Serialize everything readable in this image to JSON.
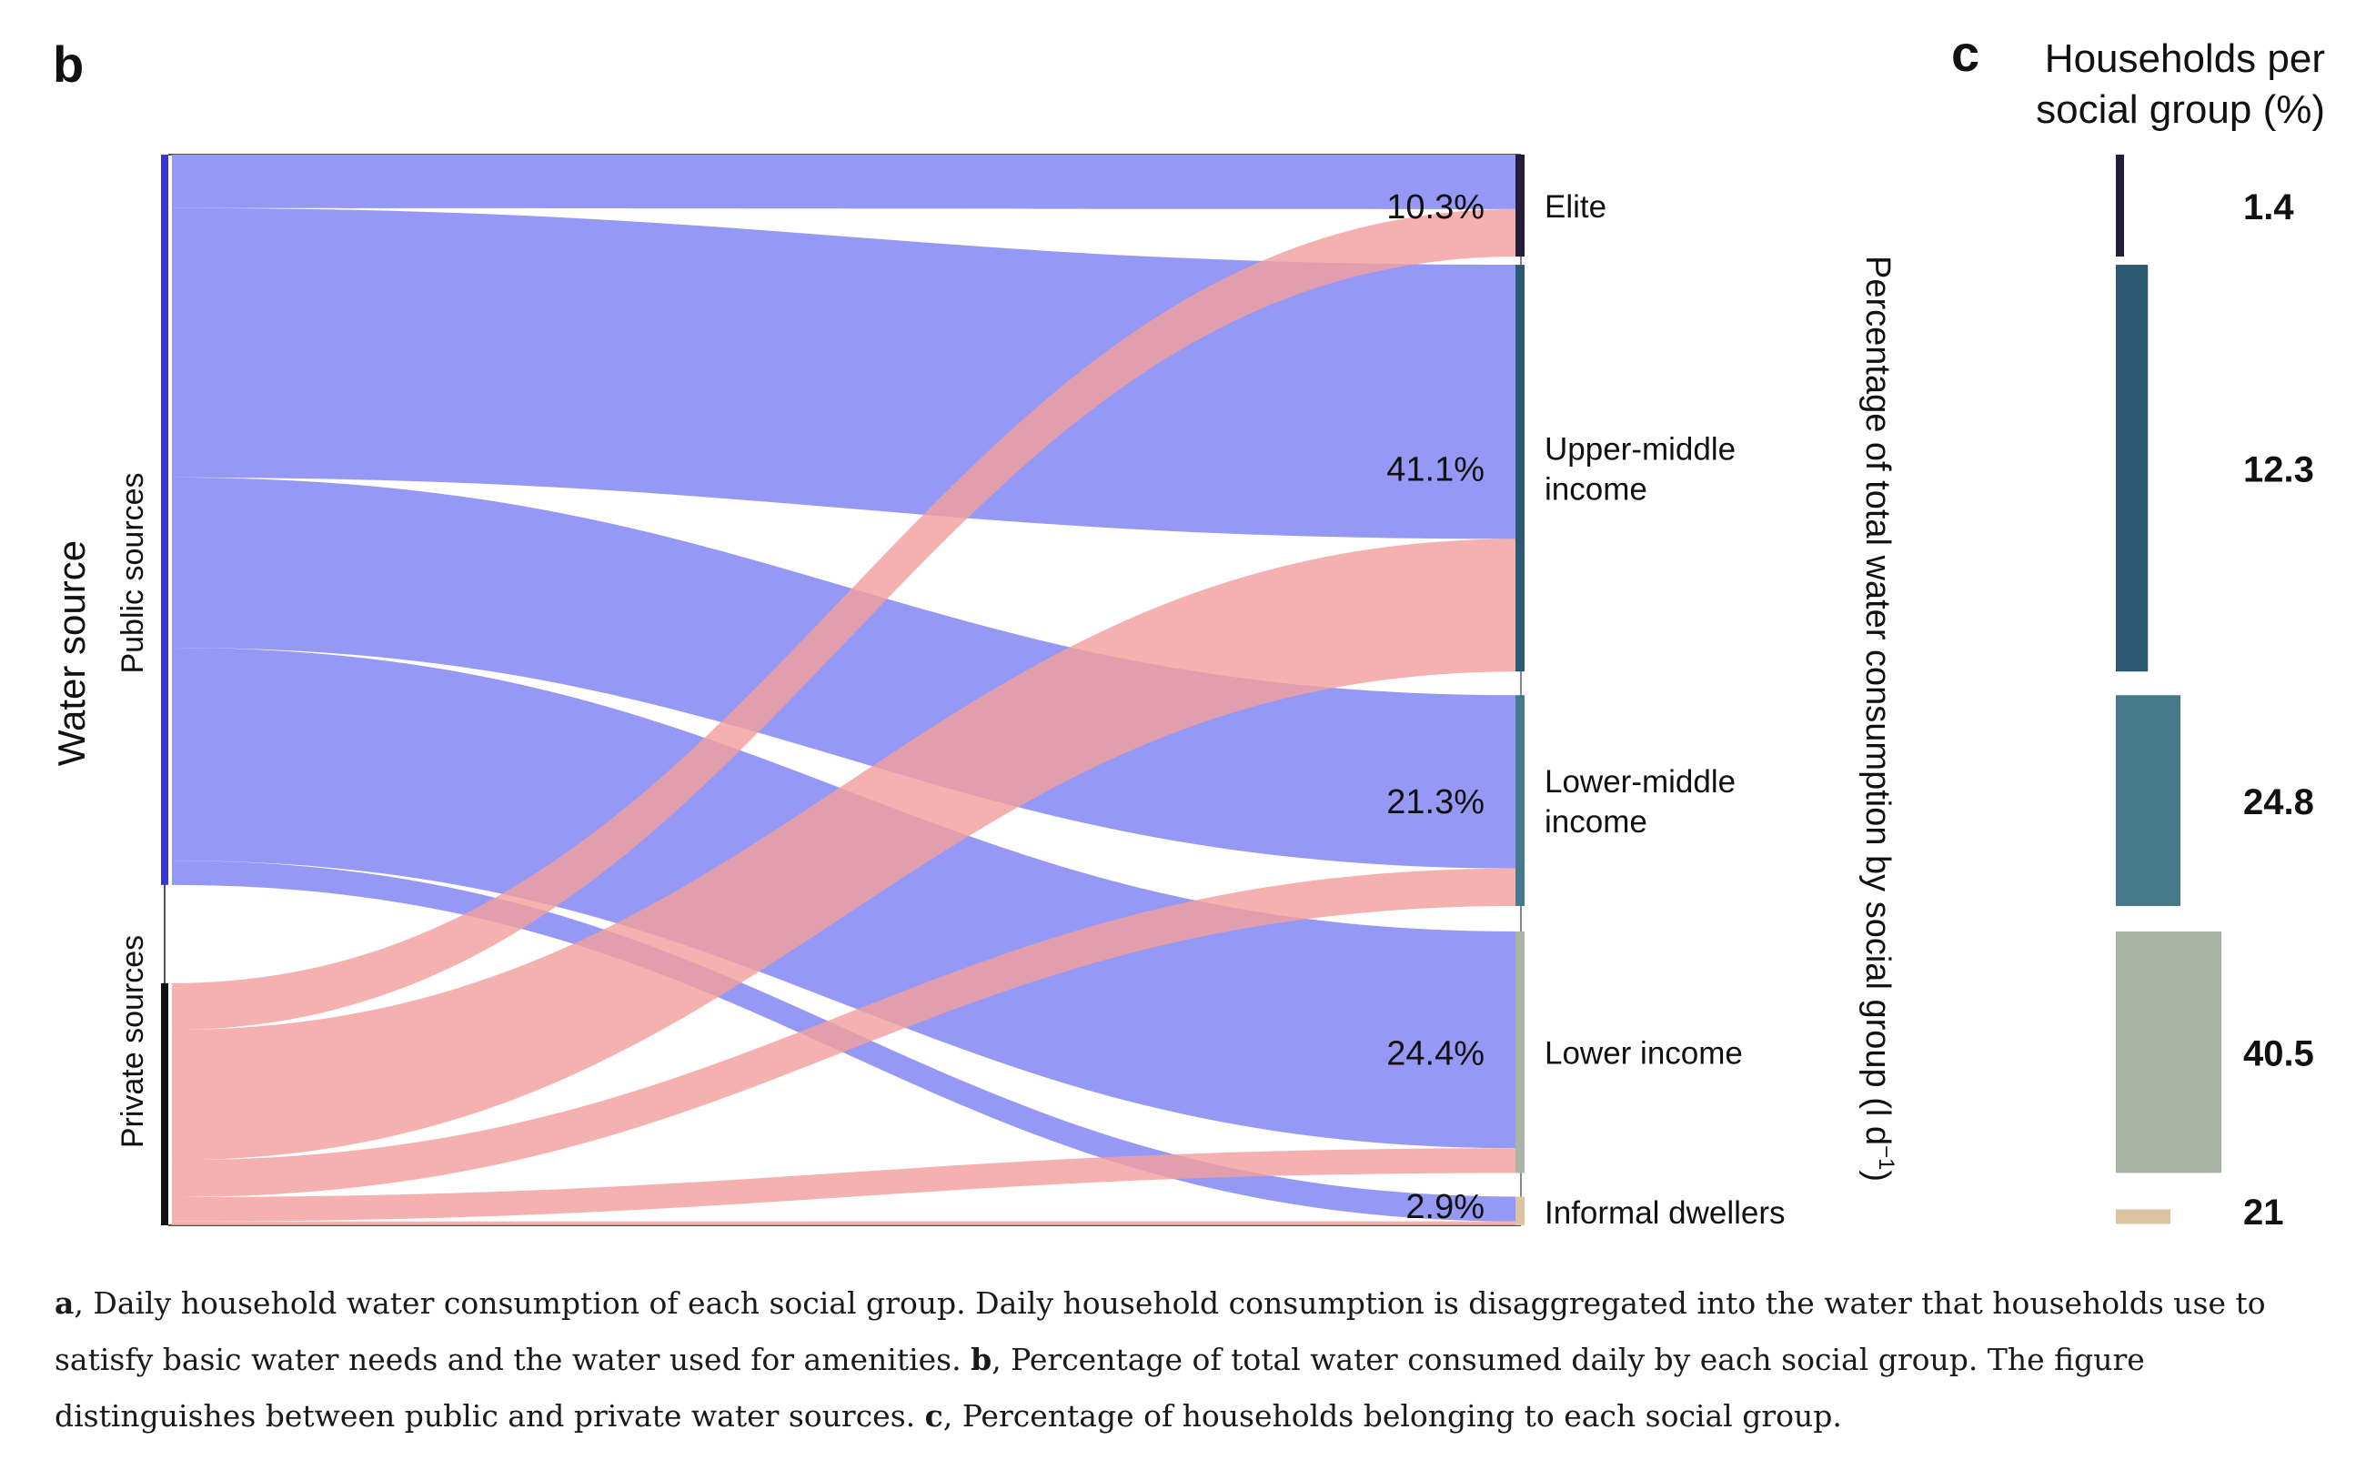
{
  "panels": {
    "b": "b",
    "c": "c"
  },
  "panel_b": {
    "source_axis_title": "Water source",
    "sources": [
      "Public sources",
      "Private sources"
    ],
    "right_axis_title_main": "Percentage of total water consumption by social group (l d",
    "right_axis_title_sup": "−1",
    "right_axis_title_end": ")",
    "groups": [
      {
        "lines": [
          "Elite"
        ],
        "pct": "10.3%"
      },
      {
        "lines": [
          "Upper-middle",
          "income"
        ],
        "pct": "41.1%"
      },
      {
        "lines": [
          "Lower-middle",
          "income"
        ],
        "pct": "21.3%"
      },
      {
        "lines": [
          "Lower income"
        ],
        "pct": "24.4%"
      },
      {
        "lines": [
          "Informal dwellers"
        ],
        "pct": "2.9%"
      }
    ]
  },
  "panel_c": {
    "title_line1": "Households per",
    "title_line2": "social group (%)"
  },
  "chart_data": [
    {
      "type": "sankey",
      "panel": "b",
      "sources": [
        "Public sources",
        "Private sources"
      ],
      "targets": [
        "Elite",
        "Upper-middle income",
        "Lower-middle income",
        "Lower income",
        "Informal dwellers"
      ],
      "target_share_pct": [
        10.3,
        41.1,
        21.3,
        24.4,
        2.9
      ],
      "flows": [
        {
          "source": "Public sources",
          "target": "Elite",
          "value": 5.5
        },
        {
          "source": "Public sources",
          "target": "Upper-middle income",
          "value": 27.7
        },
        {
          "source": "Public sources",
          "target": "Lower-middle income",
          "value": 17.5
        },
        {
          "source": "Public sources",
          "target": "Lower income",
          "value": 21.9
        },
        {
          "source": "Public sources",
          "target": "Informal dwellers",
          "value": 2.5
        },
        {
          "source": "Private sources",
          "target": "Elite",
          "value": 4.8
        },
        {
          "source": "Private sources",
          "target": "Upper-middle income",
          "value": 13.4
        },
        {
          "source": "Private sources",
          "target": "Lower-middle income",
          "value": 3.8
        },
        {
          "source": "Private sources",
          "target": "Lower income",
          "value": 2.5
        },
        {
          "source": "Private sources",
          "target": "Informal dwellers",
          "value": 0.4
        }
      ],
      "colors": {
        "public": "#9698f5",
        "private": "#f2a09d",
        "targets": [
          "#231c3a",
          "#2d5872",
          "#467a8a",
          "#a9b4a7",
          "#dcc3a2"
        ]
      }
    },
    {
      "type": "bar",
      "panel": "c",
      "orientation": "horizontal",
      "title": "Households per social group (%)",
      "categories": [
        "Elite",
        "Upper-middle income",
        "Lower-middle income",
        "Lower income",
        "Informal dwellers"
      ],
      "values": [
        1.4,
        12.3,
        24.8,
        40.5,
        21
      ],
      "value_labels": [
        "1.4",
        "12.3",
        "24.8",
        "40.5",
        "21"
      ],
      "band_weights": [
        10.3,
        41.1,
        21.3,
        24.4,
        2.9
      ],
      "colors": [
        "#231c3a",
        "#2d5872",
        "#467a8a",
        "#a9b4a7",
        "#dcc3a2"
      ]
    }
  ],
  "caption": [
    {
      "bold": "a",
      "text": ", Daily household water consumption of each social group. Daily household consumption is disaggregated into the water that households use to satisfy basic water needs and the water used for amenities. "
    },
    {
      "bold": "b",
      "text": ", Percentage of total water consumed daily by each social group. The figure distinguishes between public and private water sources. "
    },
    {
      "bold": "c",
      "text": ", Percentage of households belonging to each social group."
    }
  ]
}
